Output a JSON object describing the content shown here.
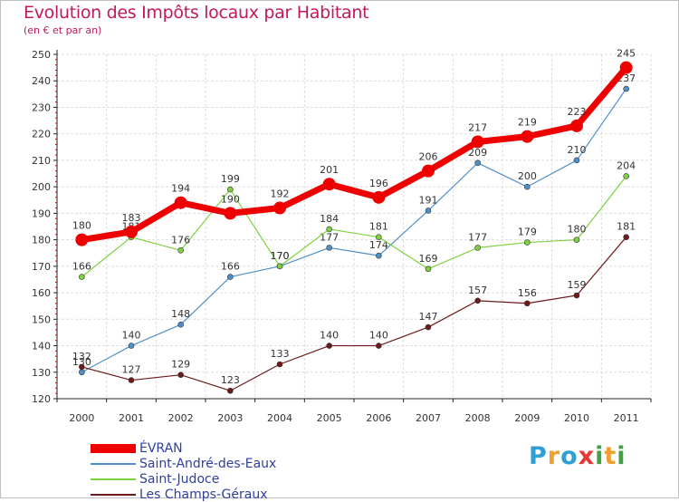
{
  "title": "Evolution des Impôts locaux par Habitant",
  "subtitle": "(en € et par an)",
  "brand": {
    "name": "Proxiti",
    "letters": [
      "P",
      "r",
      "o",
      "x",
      "i",
      "t",
      "i"
    ],
    "letter_colors": [
      "#2f9fd8",
      "#f0a030",
      "#2f9fd8",
      "#e53935",
      "#43a047",
      "#f0a030",
      "#43a047"
    ]
  },
  "chart_data": {
    "type": "line",
    "title": "Evolution des Impôts locaux par Habitant",
    "subtitle": "(en € et par an)",
    "categories": [
      "2000",
      "2001",
      "2002",
      "2003",
      "2004",
      "2005",
      "2006",
      "2007",
      "2008",
      "2009",
      "2010",
      "2011"
    ],
    "ylim": [
      120,
      250
    ],
    "yticks": [
      120,
      130,
      140,
      150,
      160,
      170,
      180,
      190,
      200,
      210,
      220,
      230,
      240,
      250
    ],
    "grid": true,
    "legend_position": "bottom-left",
    "series": [
      {
        "name": "ÉVRAN",
        "values": [
          180,
          183,
          194,
          190,
          192,
          201,
          196,
          206,
          217,
          219,
          223,
          245
        ],
        "color": "#ee0000",
        "emphasis": true
      },
      {
        "name": "Saint-André-des-Eaux",
        "values": [
          130,
          140,
          148,
          166,
          170,
          177,
          174,
          191,
          209,
          200,
          210,
          237
        ],
        "color": "#4f8fc9"
      },
      {
        "name": "Saint-Judoce",
        "values": [
          166,
          181,
          176,
          199,
          170,
          184,
          181,
          169,
          177,
          179,
          180,
          204
        ],
        "color": "#7ed140"
      },
      {
        "name": "Les Champs-Géraux",
        "values": [
          132,
          127,
          129,
          123,
          133,
          140,
          140,
          147,
          157,
          156,
          159,
          181
        ],
        "color": "#6e1a1a"
      }
    ]
  }
}
